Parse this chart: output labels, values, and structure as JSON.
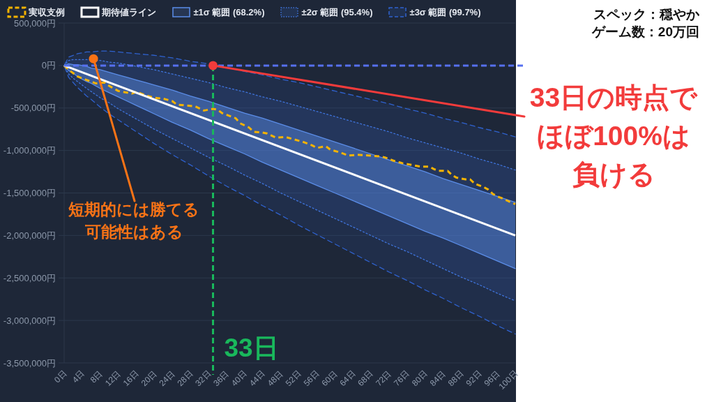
{
  "chart_data": {
    "type": "line",
    "legend": "top",
    "grid": "y",
    "xlim": [
      0,
      100
    ],
    "ylim": [
      -3500000,
      500000
    ],
    "xticks": [
      {
        "value": 0,
        "label": "0日"
      },
      {
        "value": 4,
        "label": "4日"
      },
      {
        "value": 8,
        "label": "8日"
      },
      {
        "value": 12,
        "label": "12日"
      },
      {
        "value": 16,
        "label": "16日"
      },
      {
        "value": 20,
        "label": "20日"
      },
      {
        "value": 24,
        "label": "24日"
      },
      {
        "value": 28,
        "label": "28日"
      },
      {
        "value": 32,
        "label": "32日"
      },
      {
        "value": 36,
        "label": "36日"
      },
      {
        "value": 40,
        "label": "40日"
      },
      {
        "value": 44,
        "label": "44日"
      },
      {
        "value": 48,
        "label": "48日"
      },
      {
        "value": 52,
        "label": "52日"
      },
      {
        "value": 56,
        "label": "56日"
      },
      {
        "value": 60,
        "label": "60日"
      },
      {
        "value": 64,
        "label": "64日"
      },
      {
        "value": 68,
        "label": "68日"
      },
      {
        "value": 72,
        "label": "72日"
      },
      {
        "value": 76,
        "label": "76日"
      },
      {
        "value": 80,
        "label": "80日"
      },
      {
        "value": 84,
        "label": "84日"
      },
      {
        "value": 88,
        "label": "88日"
      },
      {
        "value": 92,
        "label": "92日"
      },
      {
        "value": 96,
        "label": "96日"
      },
      {
        "value": 100,
        "label": "100日"
      }
    ],
    "yticks": [
      {
        "value": 500000,
        "label": "500,000円"
      },
      {
        "value": 0,
        "label": "0円"
      },
      {
        "value": -500000,
        "label": "-500,000円"
      },
      {
        "value": -1000000,
        "label": "-1,000,000円"
      },
      {
        "value": -1500000,
        "label": "-1,500,000円"
      },
      {
        "value": -2000000,
        "label": "-2,000,000円"
      },
      {
        "value": -2500000,
        "label": "-2,500,000円"
      },
      {
        "value": -3000000,
        "label": "-3,000,000円"
      },
      {
        "value": -3500000,
        "label": "-3,500,000円"
      }
    ],
    "series": [
      {
        "name": "実収支例",
        "type": "line",
        "color": "#f5b301",
        "line_style": "dashed",
        "x": [
          0,
          1,
          3,
          5,
          7,
          9,
          10,
          12,
          14,
          15,
          16,
          18,
          20,
          22,
          24,
          25,
          27,
          29,
          31,
          33,
          34,
          35,
          37,
          38,
          39,
          41,
          42,
          44,
          45,
          47,
          49,
          51,
          53,
          55,
          56,
          58,
          59,
          61,
          63,
          65,
          68,
          70,
          71,
          73,
          75,
          77,
          79,
          81,
          82,
          83,
          85,
          86,
          87,
          89,
          90,
          91,
          93,
          94,
          95,
          96,
          97,
          99,
          100
        ],
        "values": [
          0,
          -50000,
          -130000,
          -170000,
          -210000,
          -200000,
          -240000,
          -300000,
          -320000,
          -330000,
          -310000,
          -350000,
          -380000,
          -390000,
          -420000,
          -460000,
          -470000,
          -480000,
          -530000,
          -510000,
          -520000,
          -560000,
          -600000,
          -620000,
          -680000,
          -730000,
          -780000,
          -790000,
          -800000,
          -850000,
          -840000,
          -870000,
          -900000,
          -940000,
          -970000,
          -950000,
          -990000,
          -1020000,
          -1060000,
          -1050000,
          -1060000,
          -1070000,
          -1080000,
          -1120000,
          -1150000,
          -1170000,
          -1190000,
          -1190000,
          -1220000,
          -1240000,
          -1240000,
          -1290000,
          -1320000,
          -1340000,
          -1340000,
          -1390000,
          -1430000,
          -1460000,
          -1510000,
          -1540000,
          -1560000,
          -1610000,
          -1630000
        ]
      },
      {
        "name": "期待値ライン",
        "type": "line",
        "color": "#ffffff",
        "line_style": "solid",
        "x": [
          0,
          100
        ],
        "values": [
          0,
          -2000000
        ]
      },
      {
        "name": "±1σ 範囲 (68.2%)",
        "type": "area",
        "color": "#5b8de8",
        "line_style": "solid",
        "x": [
          0,
          1,
          2,
          3,
          4,
          5,
          6,
          8,
          10,
          12,
          14,
          16,
          18,
          20,
          24,
          28,
          32,
          36,
          40,
          44,
          48,
          52,
          56,
          60,
          64,
          68,
          72,
          76,
          80,
          84,
          88,
          92,
          96,
          100
        ],
        "values": [
          null,
          null,
          null,
          null,
          null,
          null,
          null,
          null,
          null,
          null,
          null,
          null,
          null,
          null,
          null,
          null,
          null,
          null,
          null,
          null,
          null,
          null,
          null,
          null,
          null,
          null,
          null,
          null,
          null,
          null,
          null,
          null,
          null,
          null
        ],
        "lower": [
          0,
          -60000,
          -90000,
          -130000,
          -160000,
          -190000,
          -210000,
          -270000,
          -320000,
          -370000,
          -420000,
          -470000,
          -520000,
          -570000,
          -670000,
          -760000,
          -860000,
          -950000,
          -1040000,
          -1140000,
          -1230000,
          -1320000,
          -1410000,
          -1500000,
          -1590000,
          -1680000,
          -1770000,
          -1860000,
          -1950000,
          -2030000,
          -2120000,
          -2210000,
          -2300000,
          -2390000
        ],
        "upper": [
          0,
          20000,
          10000,
          10000,
          0,
          -10000,
          -30000,
          -50000,
          -80000,
          -110000,
          -140000,
          -170000,
          -200000,
          -230000,
          -290000,
          -360000,
          -420000,
          -490000,
          -560000,
          -620000,
          -690000,
          -760000,
          -830000,
          -900000,
          -970000,
          -1040000,
          -1110000,
          -1180000,
          -1250000,
          -1330000,
          -1400000,
          -1470000,
          -1540000,
          -1610000
        ]
      },
      {
        "name": "±2σ 範囲 (95.4%)",
        "type": "area",
        "color": "#3f74dc",
        "line_style": "dotted",
        "x": [
          0,
          1,
          2,
          3,
          4,
          5,
          8,
          10,
          12,
          14,
          16,
          18,
          20,
          24,
          28,
          32,
          36,
          40,
          44,
          48,
          52,
          56,
          60,
          64,
          68,
          72,
          76,
          80,
          84,
          88,
          92,
          96,
          100
        ],
        "values": [
          null,
          null,
          null,
          null,
          null,
          null,
          null,
          null,
          null,
          null,
          null,
          null,
          null,
          null,
          null,
          null,
          null,
          null,
          null,
          null,
          null,
          null,
          null,
          null,
          null,
          null,
          null,
          null,
          null,
          null,
          null,
          null,
          null
        ],
        "lower": [
          0,
          -100000,
          -150000,
          -190000,
          -230000,
          -270000,
          -380000,
          -440000,
          -510000,
          -570000,
          -630000,
          -690000,
          -750000,
          -860000,
          -970000,
          -1080000,
          -1180000,
          -1290000,
          -1390000,
          -1500000,
          -1600000,
          -1700000,
          -1800000,
          -1900000,
          -2000000,
          -2100000,
          -2190000,
          -2290000,
          -2390000,
          -2490000,
          -2580000,
          -2680000,
          -2770000
        ],
        "upper": [
          0,
          60000,
          70000,
          70000,
          70000,
          70000,
          60000,
          40000,
          30000,
          10000,
          -10000,
          -30000,
          -50000,
          -100000,
          -150000,
          -200000,
          -260000,
          -310000,
          -370000,
          -420000,
          -480000,
          -540000,
          -600000,
          -660000,
          -720000,
          -780000,
          -850000,
          -910000,
          -970000,
          -1030000,
          -1100000,
          -1160000,
          -1230000
        ]
      },
      {
        "name": "±3σ 範囲 (99.7%)",
        "type": "area",
        "color": "#2f62cf",
        "line_style": "dashed",
        "x": [
          0,
          1,
          2,
          3,
          4,
          5,
          6,
          8,
          10,
          12,
          14,
          16,
          18,
          20,
          24,
          28,
          32,
          36,
          40,
          44,
          48,
          52,
          56,
          60,
          64,
          68,
          72,
          76,
          80,
          84,
          88,
          92,
          96,
          100
        ],
        "values": [
          null,
          null,
          null,
          null,
          null,
          null,
          null,
          null,
          null,
          null,
          null,
          null,
          null,
          null,
          null,
          null,
          null,
          null,
          null,
          null,
          null,
          null,
          null,
          null,
          null,
          null,
          null,
          null,
          null,
          null,
          null,
          null,
          null,
          null
        ],
        "lower": [
          0,
          -140000,
          -200000,
          -260000,
          -310000,
          -360000,
          -400000,
          -490000,
          -570000,
          -640000,
          -710000,
          -780000,
          -850000,
          -920000,
          -1050000,
          -1170000,
          -1300000,
          -1420000,
          -1530000,
          -1650000,
          -1760000,
          -1880000,
          -1990000,
          -2100000,
          -2210000,
          -2320000,
          -2430000,
          -2530000,
          -2640000,
          -2740000,
          -2850000,
          -2950000,
          -3060000,
          -3160000
        ],
        "upper": [
          0,
          100000,
          120000,
          140000,
          150000,
          160000,
          160000,
          170000,
          170000,
          160000,
          150000,
          140000,
          130000,
          120000,
          90000,
          50000,
          20000,
          -20000,
          -70000,
          -110000,
          -160000,
          -200000,
          -250000,
          -300000,
          -350000,
          -400000,
          -450000,
          -510000,
          -560000,
          -620000,
          -670000,
          -730000,
          -780000,
          -840000
        ]
      }
    ],
    "ref_lines": [
      {
        "axis": "y",
        "value": 0,
        "color": "#5670f0",
        "line_style": "dashed"
      },
      {
        "axis": "x",
        "value": 33,
        "label": "33日",
        "color": "#19b85c",
        "line_style": "dashed"
      }
    ],
    "annotations": [
      "スペック：穏やか",
      "ゲーム数：20万回",
      {
        "text": "33日の時点でほぼ100%は負ける",
        "x": 33,
        "y": 0
      },
      {
        "text": "短期的には勝てる可能性はある",
        "x": 6.5,
        "y": 80000
      }
    ]
  }
}
